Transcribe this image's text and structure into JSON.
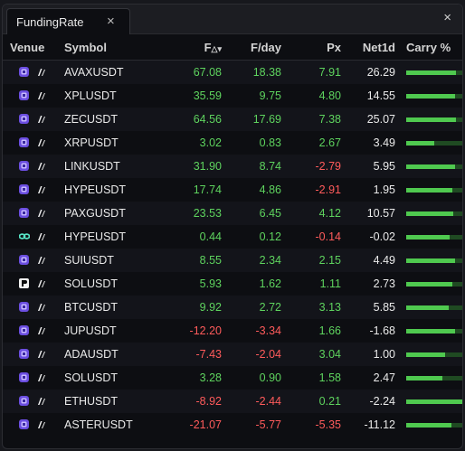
{
  "tab": {
    "title": "FundingRate",
    "close": "×"
  },
  "window_close": "×",
  "columns": {
    "venue": "Venue",
    "symbol": "Symbol",
    "f": "F",
    "f_sort": "△▾",
    "fday": "F/day",
    "px": "Px",
    "net": "Net1d",
    "carry": "Carry %"
  },
  "colors": {
    "positive": "#5ed35e",
    "negative": "#ff5b5b",
    "bar": "#4fc94f",
    "bar_bg": "#1f4a22"
  },
  "rows": [
    {
      "venue_icon": "hexagon-purple",
      "symbol": "AVAXUSDT",
      "f": "67.08",
      "fday": "18.38",
      "px": "7.91",
      "net": "26.29",
      "carry": 0.88
    },
    {
      "venue_icon": "hexagon-purple",
      "symbol": "XPLUSDT",
      "f": "35.59",
      "fday": "9.75",
      "px": "4.80",
      "net": "14.55",
      "carry": 0.87
    },
    {
      "venue_icon": "hexagon-purple",
      "symbol": "ZECUSDT",
      "f": "64.56",
      "fday": "17.69",
      "px": "7.38",
      "net": "25.07",
      "carry": 0.88
    },
    {
      "venue_icon": "hexagon-purple",
      "symbol": "XRPUSDT",
      "f": "3.02",
      "fday": "0.83",
      "px": "2.67",
      "net": "3.49",
      "carry": 0.5
    },
    {
      "venue_icon": "hexagon-purple",
      "symbol": "LINKUSDT",
      "f": "31.90",
      "fday": "8.74",
      "px": "-2.79",
      "net": "5.95",
      "carry": 0.87
    },
    {
      "venue_icon": "hexagon-purple",
      "symbol": "HYPEUSDT",
      "f": "17.74",
      "fday": "4.86",
      "px": "-2.91",
      "net": "1.95",
      "carry": 0.82
    },
    {
      "venue_icon": "hexagon-purple",
      "symbol": "PAXGUSDT",
      "f": "23.53",
      "fday": "6.45",
      "px": "4.12",
      "net": "10.57",
      "carry": 0.84
    },
    {
      "venue_icon": "infinity-teal",
      "symbol": "HYPEUSDT",
      "f": "0.44",
      "fday": "0.12",
      "px": "-0.14",
      "net": "-0.02",
      "carry": 0.77
    },
    {
      "venue_icon": "hexagon-purple",
      "symbol": "SUIUSDT",
      "f": "8.55",
      "fday": "2.34",
      "px": "2.15",
      "net": "4.49",
      "carry": 0.87
    },
    {
      "venue_icon": "p-black",
      "symbol": "SOLUSDT",
      "f": "5.93",
      "fday": "1.62",
      "px": "1.11",
      "net": "2.73",
      "carry": 0.82
    },
    {
      "venue_icon": "hexagon-purple",
      "symbol": "BTCUSDT",
      "f": "9.92",
      "fday": "2.72",
      "px": "3.13",
      "net": "5.85",
      "carry": 0.76
    },
    {
      "venue_icon": "hexagon-purple",
      "symbol": "JUPUSDT",
      "f": "-12.20",
      "fday": "-3.34",
      "px": "1.66",
      "net": "-1.68",
      "carry": 0.87
    },
    {
      "venue_icon": "hexagon-purple",
      "symbol": "ADAUSDT",
      "f": "-7.43",
      "fday": "-2.04",
      "px": "3.04",
      "net": "1.00",
      "carry": 0.7
    },
    {
      "venue_icon": "hexagon-purple",
      "symbol": "SOLUSDT",
      "f": "3.28",
      "fday": "0.90",
      "px": "1.58",
      "net": "2.47",
      "carry": 0.65
    },
    {
      "venue_icon": "hexagon-purple",
      "symbol": "ETHUSDT",
      "f": "-8.92",
      "fday": "-2.44",
      "px": "0.21",
      "net": "-2.24",
      "carry": 1.0
    },
    {
      "venue_icon": "hexagon-purple",
      "symbol": "ASTERUSDT",
      "f": "-21.07",
      "fday": "-5.77",
      "px": "-5.35",
      "net": "-11.12",
      "carry": 0.8
    }
  ]
}
